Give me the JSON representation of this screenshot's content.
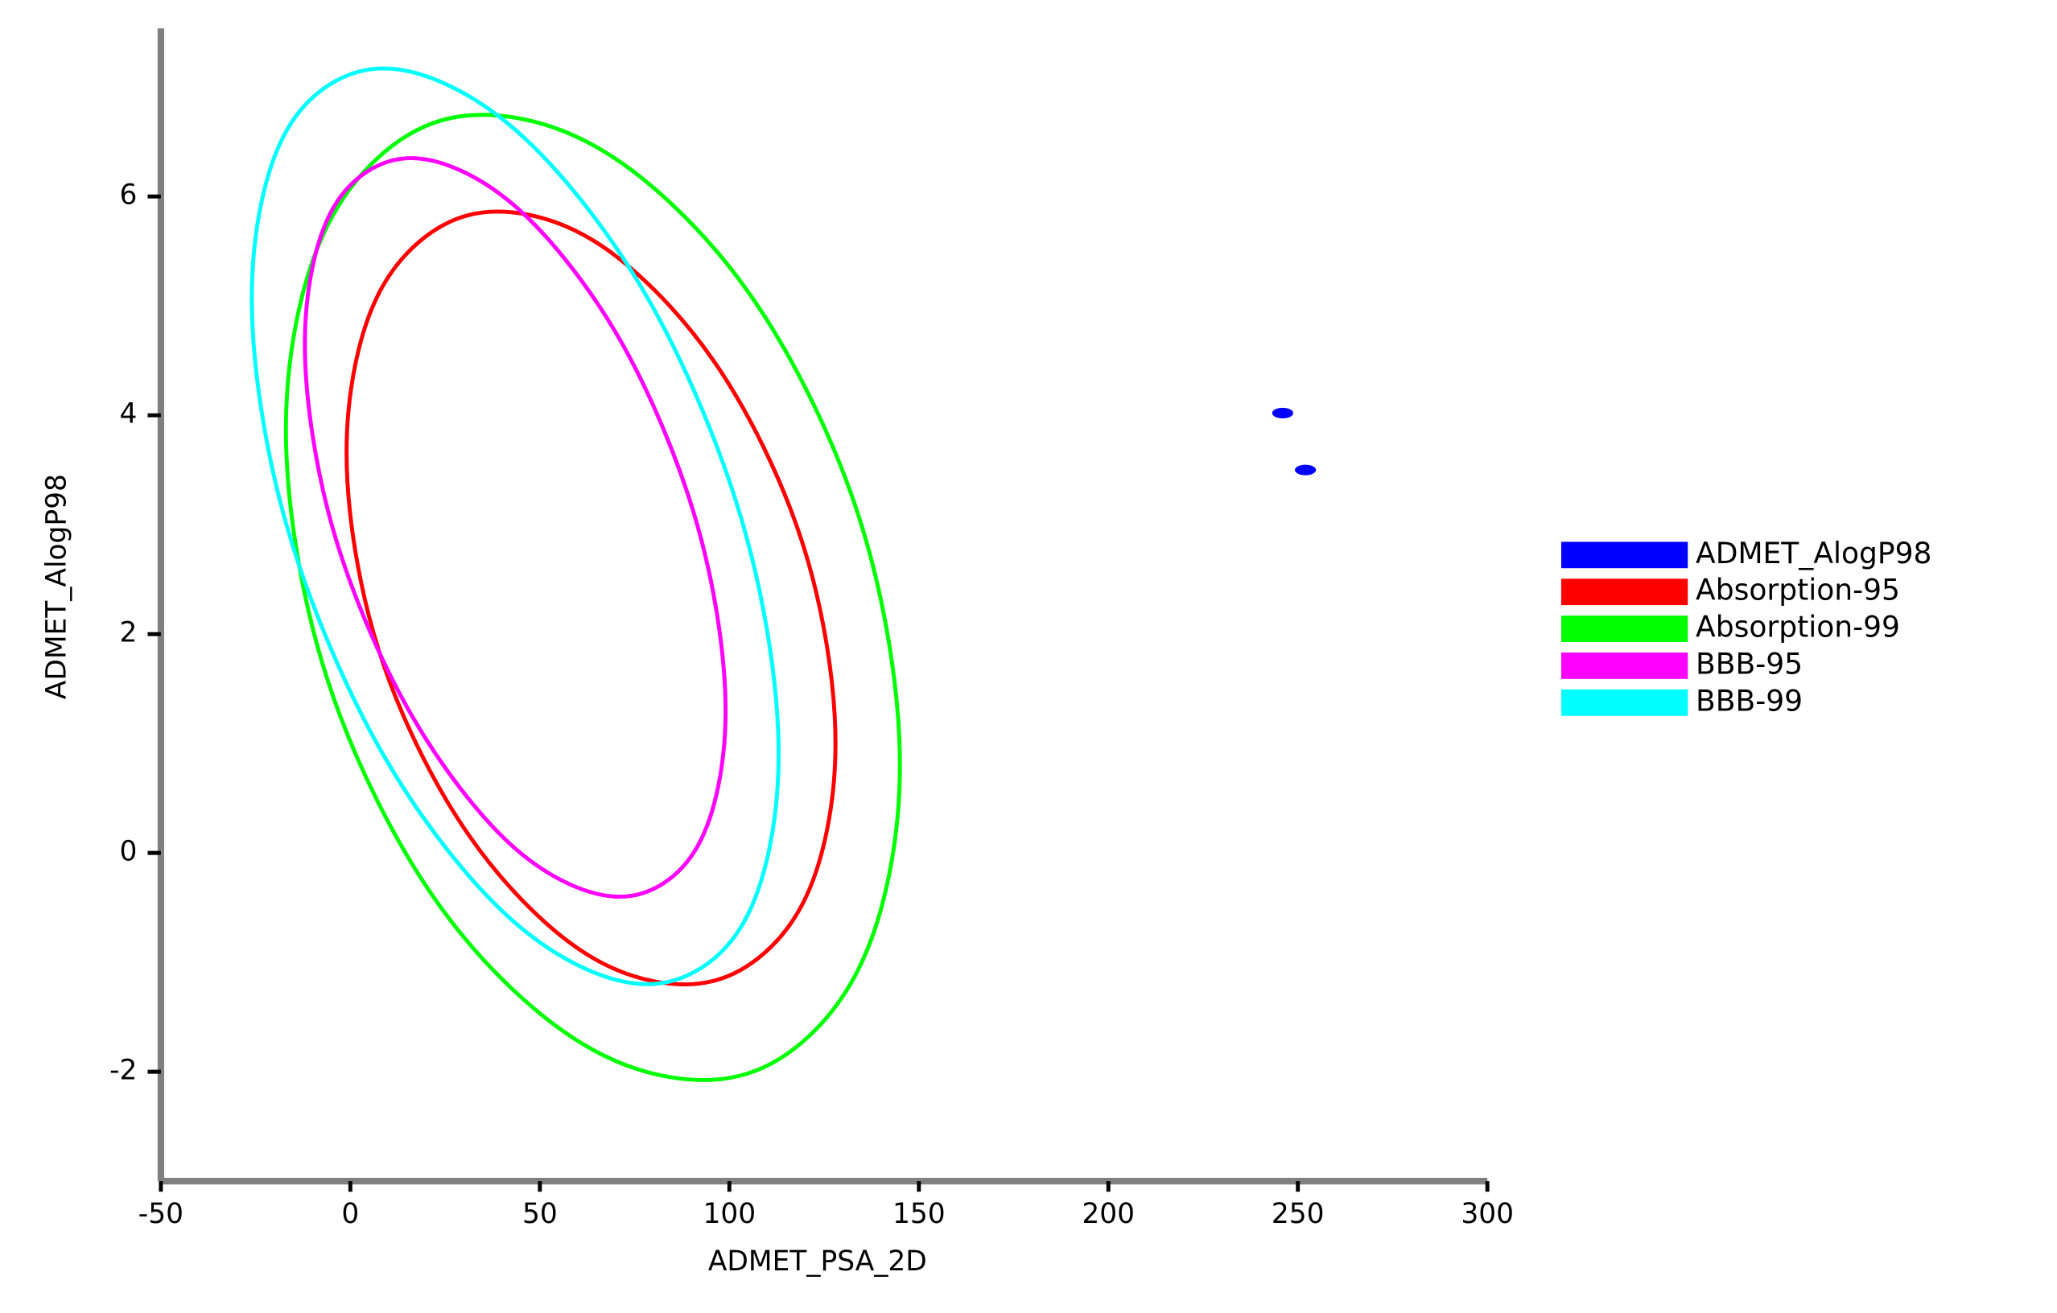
{
  "chart_data": {
    "type": "scatter",
    "x_label": "ADMET_PSA_2D",
    "y_label": "ADMET_AlogP98",
    "xlim": [
      -50,
      300
    ],
    "xticks": [
      -50,
      0,
      50,
      100,
      150,
      200,
      250,
      300
    ],
    "ylim": [
      -3,
      7.5
    ],
    "yticks": [
      -2,
      0,
      2,
      4,
      6
    ],
    "legend": "right",
    "series": [
      {
        "name": "ADMET_AlogP98",
        "color": "#0000ff",
        "closed": false,
        "x": [
          246,
          252
        ],
        "values": [
          4.02,
          3.5
        ]
      },
      {
        "name": "Absorption-95",
        "color": "#ff0000",
        "closed": true,
        "x": [
          128,
          119.4,
          95.8,
          63.5,
          31.3,
          7.6,
          -1,
          7.6,
          31.3,
          63.5,
          95.8,
          119.4
        ],
        "values": [
          1.0,
          2.82,
          4.5,
          5.61,
          5.83,
          5.12,
          3.66,
          1.84,
          0.16,
          -0.95,
          -1.17,
          -0.46
        ]
      },
      {
        "name": "Absorption-99",
        "color": "#00ff00",
        "closed": true,
        "x": [
          145,
          134.1,
          104.5,
          64,
          23.5,
          -6.1,
          -17,
          -6.1,
          23.5,
          64,
          104.5,
          134.1
        ],
        "values": [
          0.8,
          3.08,
          5.15,
          6.47,
          6.69,
          5.73,
          3.87,
          1.59,
          -0.48,
          -1.8,
          -2.02,
          -1.06
        ]
      },
      {
        "name": "BBB-95",
        "color": "#ff00ff",
        "closed": true,
        "x": [
          99,
          91.6,
          71.3,
          43.5,
          15.8,
          -4.6,
          -12,
          -4.6,
          15.8,
          43.5,
          71.3,
          91.6
        ],
        "values": [
          1.3,
          2.99,
          4.68,
          5.91,
          6.35,
          5.89,
          4.65,
          2.96,
          1.28,
          0.04,
          -0.4,
          0.06
        ]
      },
      {
        "name": "BBB-99",
        "color": "#00ffff",
        "closed": true,
        "x": [
          113,
          103.7,
          78.3,
          43.5,
          8.8,
          -16.7,
          -26,
          -16.7,
          8.8,
          43.5,
          78.3,
          103.7
        ],
        "values": [
          0.9,
          2.99,
          5.08,
          6.61,
          7.17,
          6.61,
          5.07,
          2.98,
          0.89,
          -0.64,
          -1.2,
          -0.64
        ]
      }
    ]
  }
}
